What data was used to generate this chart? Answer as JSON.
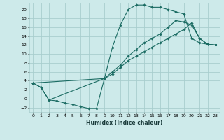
{
  "xlabel": "Humidex (Indice chaleur)",
  "background_color": "#cdeaea",
  "grid_color": "#a8cece",
  "line_color": "#1a6b62",
  "xlim": [
    -0.5,
    23.5
  ],
  "ylim": [
    -3,
    21.5
  ],
  "xticks": [
    0,
    1,
    2,
    3,
    4,
    5,
    6,
    7,
    8,
    9,
    10,
    11,
    12,
    13,
    14,
    15,
    16,
    17,
    18,
    19,
    20,
    21,
    22,
    23
  ],
  "yticks": [
    -2,
    0,
    2,
    4,
    6,
    8,
    10,
    12,
    14,
    16,
    18,
    20
  ],
  "line1_x": [
    0,
    1,
    2,
    3,
    4,
    5,
    6,
    7,
    8,
    9,
    10,
    11,
    12,
    13,
    14,
    15,
    16,
    17,
    18,
    19,
    20,
    21,
    22,
    23
  ],
  "line1_y": [
    3.5,
    2.5,
    -0.3,
    -0.5,
    -1.0,
    -1.3,
    -1.8,
    -2.2,
    -2.2,
    4.5,
    11.5,
    16.5,
    20.0,
    21.0,
    21.0,
    20.5,
    20.5,
    20.0,
    19.5,
    19.0,
    13.5,
    12.5,
    12.2,
    12.0
  ],
  "line2_x": [
    0,
    1,
    2,
    9,
    10,
    11,
    12,
    13,
    14,
    15,
    16,
    17,
    18,
    19,
    20,
    21,
    22,
    23
  ],
  "line2_y": [
    3.5,
    2.5,
    -0.3,
    4.5,
    6.0,
    7.5,
    9.5,
    11.0,
    12.5,
    13.5,
    14.5,
    16.0,
    17.5,
    17.2,
    16.5,
    13.5,
    12.2,
    12.0
  ],
  "line3_x": [
    0,
    9,
    10,
    11,
    12,
    13,
    14,
    15,
    16,
    17,
    18,
    19,
    20,
    21,
    22,
    23
  ],
  "line3_y": [
    3.5,
    4.5,
    5.5,
    7.0,
    8.5,
    9.5,
    10.5,
    11.5,
    12.5,
    13.5,
    14.5,
    15.5,
    17.0,
    13.5,
    12.2,
    12.0
  ]
}
